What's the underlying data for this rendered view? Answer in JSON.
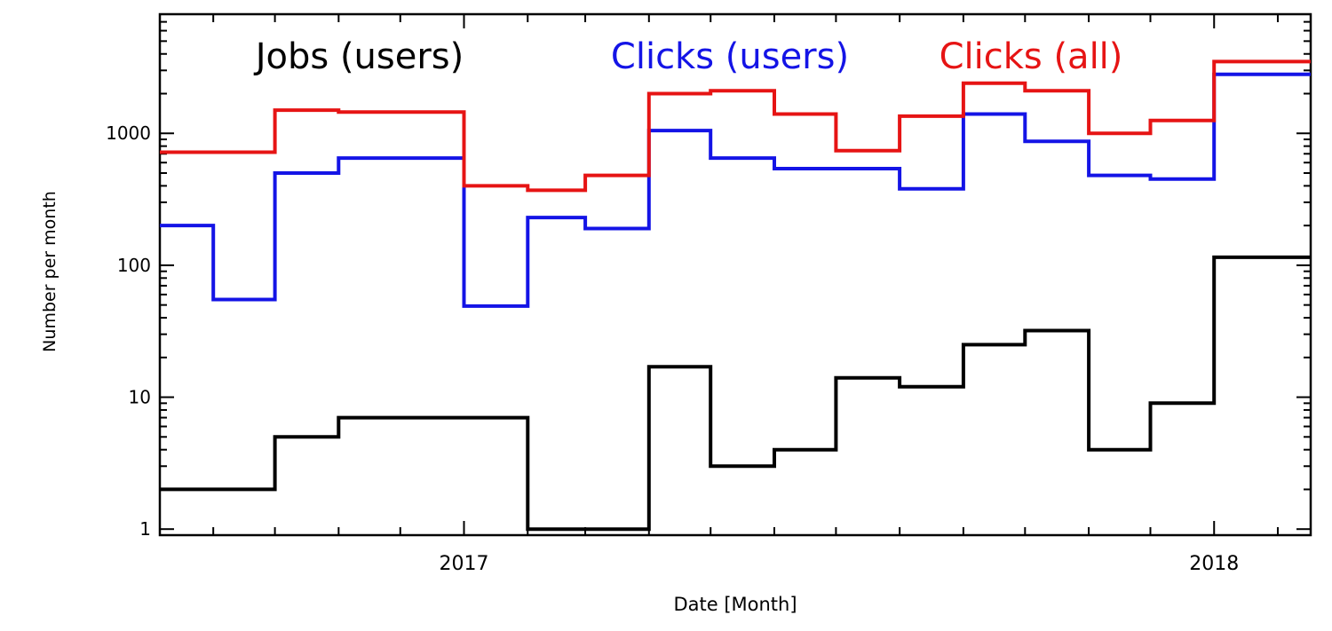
{
  "chart_data": {
    "type": "line",
    "step": true,
    "title": "",
    "xlabel": "Date [Month]",
    "ylabel": "Number per month",
    "y_scale": "log",
    "ylim": [
      0.9,
      8000
    ],
    "xlim": [
      "2016-08-06",
      "2018-02-17"
    ],
    "x_tick_labels": [
      {
        "date": "2017-01-01",
        "label": "2017"
      },
      {
        "date": "2018-01-01",
        "label": "2018"
      }
    ],
    "y_tick_labels": [
      {
        "value": 1,
        "label": "1"
      },
      {
        "value": 10,
        "label": "10"
      },
      {
        "value": 100,
        "label": "100"
      },
      {
        "value": 1000,
        "label": "1000"
      }
    ],
    "x": [
      "2016-08",
      "2016-09",
      "2016-10",
      "2016-11",
      "2016-12",
      "2017-01",
      "2017-02",
      "2017-03",
      "2017-04",
      "2017-05",
      "2017-06",
      "2017-07",
      "2017-08",
      "2017-09",
      "2017-10",
      "2017-11",
      "2017-12",
      "2018-01",
      "2018-02"
    ],
    "series": [
      {
        "name": "Jobs (users)",
        "color": "#000000",
        "values": [
          2,
          2,
          5,
          7,
          7,
          7,
          1,
          1,
          17,
          3,
          4,
          14,
          12,
          25,
          32,
          4,
          9,
          115,
          115
        ]
      },
      {
        "name": "Clicks (users)",
        "color": "#1414e6",
        "values": [
          200,
          55,
          500,
          650,
          650,
          49,
          230,
          190,
          1050,
          650,
          540,
          540,
          380,
          1400,
          870,
          480,
          450,
          2800,
          2800
        ]
      },
      {
        "name": "Clicks (all)",
        "color": "#e61414",
        "values": [
          720,
          720,
          1500,
          1450,
          1450,
          400,
          370,
          480,
          2000,
          2100,
          1400,
          740,
          1350,
          2400,
          2100,
          1000,
          1250,
          3500,
          3500
        ]
      }
    ],
    "legend_position": "top",
    "grid": false
  }
}
